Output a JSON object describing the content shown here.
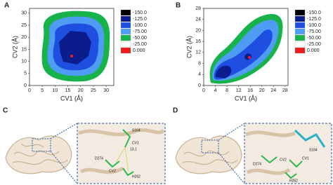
{
  "chart_data": [
    {
      "type": "contour",
      "panel": "A",
      "xlabel": "CV1 (Å)",
      "ylabel": "CV2 (Å)",
      "xlim": [
        0,
        33
      ],
      "ylim": [
        0,
        32
      ],
      "xticks": [
        0,
        5,
        10,
        15,
        20,
        25,
        30
      ],
      "yticks": [
        0,
        5,
        10,
        15,
        20,
        25,
        30
      ],
      "levels": [
        {
          "value": -150,
          "label": "-150.0"
        },
        {
          "value": -125,
          "label": "-125.0"
        },
        {
          "value": -100,
          "label": "-100.0"
        },
        {
          "value": -75,
          "label": "-75.00"
        },
        {
          "value": -50,
          "label": "-50.00"
        },
        {
          "value": -25,
          "label": "-25.00"
        },
        {
          "value": 0,
          "label": "0.000"
        }
      ],
      "colors": [
        "#000000",
        "#0b1c8c",
        "#1f4fe0",
        "#4f9cf5",
        "#17b34a",
        "#ffffff",
        "#ee1c1c"
      ]
    },
    {
      "type": "contour",
      "panel": "B",
      "xlabel": "CV1 (Å)",
      "ylabel": "CV2 (Å)",
      "xlim": [
        0,
        29
      ],
      "ylim": [
        0,
        28
      ],
      "xticks": [
        0,
        4,
        8,
        12,
        16,
        20,
        24,
        28
      ],
      "yticks": [
        0,
        4,
        8,
        12,
        16,
        20,
        24,
        28
      ],
      "levels": [
        {
          "value": -150,
          "label": "-150.0"
        },
        {
          "value": -125,
          "label": "-125.0"
        },
        {
          "value": -100,
          "label": "-100.0"
        },
        {
          "value": -75,
          "label": "-75.00"
        },
        {
          "value": -50,
          "label": "-50.00"
        },
        {
          "value": -25,
          "label": "-25.00"
        },
        {
          "value": 0,
          "label": "0.000"
        }
      ],
      "colors": [
        "#000000",
        "#0b1c8c",
        "#1f4fe0",
        "#4f9cf5",
        "#17b34a",
        "#ffffff",
        "#ee1c1c"
      ]
    }
  ],
  "panels": {
    "c": {
      "label": "C",
      "annotations": [
        "S164",
        "CV1",
        "13.1",
        "D274",
        "CV2",
        "H262"
      ]
    },
    "d": {
      "label": "D",
      "annotations": [
        "S164",
        "D274",
        "CV2",
        "CV1",
        "H262"
      ]
    }
  }
}
